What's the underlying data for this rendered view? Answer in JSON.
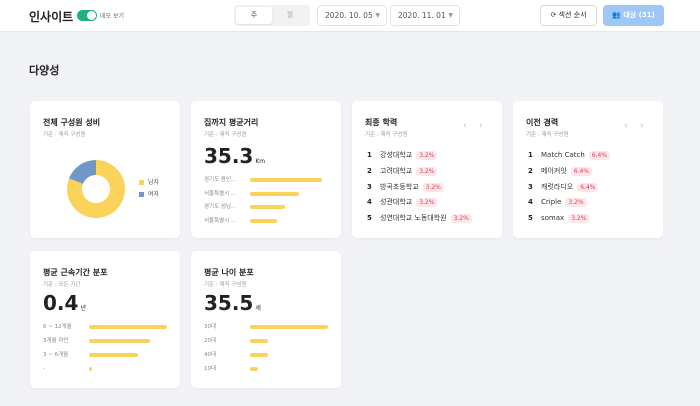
{
  "header": {
    "title": "인사이트",
    "toggle_label": "데모 보기",
    "seg_a": "주",
    "seg_b": "월",
    "date_start": "2020. 10. 05",
    "date_end": "2020. 11. 01",
    "order_button": "섹션 순서",
    "target_button": "대상 (31)"
  },
  "section_title": "다양성",
  "gender": {
    "title": "전체 구성원 성비",
    "sub": "기준 : 재직 구성원",
    "legend": [
      {
        "label": "남자",
        "color": "#fcd35a"
      },
      {
        "label": "여자",
        "color": "#6f98c8"
      }
    ],
    "chart_data": {
      "type": "pie",
      "categories": [
        "남자",
        "여자"
      ],
      "values": [
        81,
        19
      ]
    }
  },
  "distance": {
    "title": "집까지 평균거리",
    "sub": "기준 : 재직 구성원",
    "value": "35.3",
    "unit": "Km",
    "chart_data": {
      "type": "bar",
      "categories": [
        "경기도 용인...",
        "서울특별시 ...",
        "경기도 성남...",
        "서울특별시 ..."
      ],
      "values": [
        100,
        68,
        48,
        38
      ]
    }
  },
  "education": {
    "title": "최종 학력",
    "sub": "기준 : 재직 구성원",
    "items": [
      {
        "n": "1",
        "name": "강성대학교",
        "pct": "3.2%"
      },
      {
        "n": "2",
        "name": "고려대학교",
        "pct": "3.2%"
      },
      {
        "n": "3",
        "name": "방곡초등학교",
        "pct": "3.2%"
      },
      {
        "n": "4",
        "name": "성관대학교",
        "pct": "3.2%"
      },
      {
        "n": "5",
        "name": "성연대학교 노동대학원",
        "pct": "3.2%"
      }
    ]
  },
  "career": {
    "title": "이전 경력",
    "sub": "기준 : 재직 구성원",
    "items": [
      {
        "n": "1",
        "name": "Match Catch",
        "pct": "6.4%"
      },
      {
        "n": "2",
        "name": "메이커잇",
        "pct": "6.4%"
      },
      {
        "n": "3",
        "name": "캐럿라디오",
        "pct": "6.4%"
      },
      {
        "n": "4",
        "name": "Criple",
        "pct": "3.2%"
      },
      {
        "n": "5",
        "name": "somax",
        "pct": "3.2%"
      }
    ]
  },
  "tenure": {
    "title": "평균 근속기간 분포",
    "sub": "기준 : 모든 기간",
    "value": "0.4",
    "unit": "년",
    "chart_data": {
      "type": "bar",
      "categories": [
        "6 ~ 12개월",
        "3개월 미만",
        "3 ~ 6개월",
        "-"
      ],
      "values": [
        100,
        78,
        63,
        4
      ]
    }
  },
  "age": {
    "title": "평균 나이 분포",
    "sub": "기준 : 재직 구성원",
    "value": "35.5",
    "unit": "세",
    "chart_data": {
      "type": "bar",
      "categories": [
        "30대",
        "20대",
        "40대",
        "10대"
      ],
      "values": [
        100,
        23,
        23,
        10
      ]
    }
  },
  "pager": {
    "prev": "‹",
    "next": "›"
  }
}
